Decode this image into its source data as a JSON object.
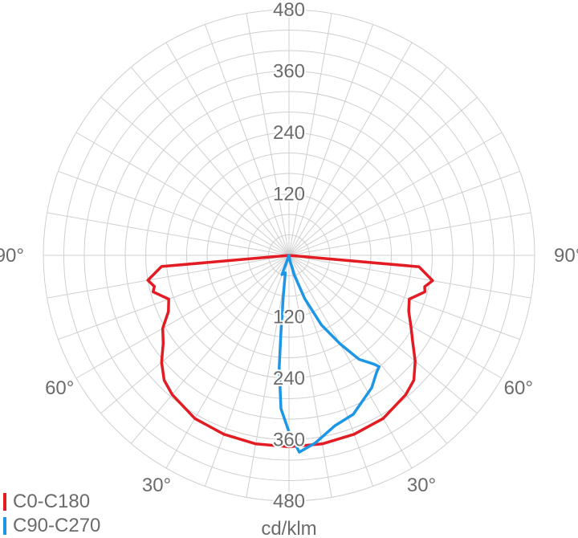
{
  "chart_data": {
    "type": "polar",
    "unit": "cd/klm",
    "r_ticks": [
      120,
      240,
      360,
      480
    ],
    "r_max": 480,
    "angle_labels_left": [
      "90°",
      "60°",
      "30°"
    ],
    "angle_labels_right": [
      "90°",
      "60°",
      "30°"
    ],
    "grid": true,
    "legend_position": "bottom-left",
    "series": [
      {
        "name": "C0-C180",
        "color": "#e31b23",
        "points": [
          [
            -90,
            0
          ],
          [
            -85,
            250
          ],
          [
            -80,
            280
          ],
          [
            -77,
            270
          ],
          [
            -75,
            275
          ],
          [
            -70,
            250
          ],
          [
            -65,
            260
          ],
          [
            -60,
            285
          ],
          [
            -55,
            300
          ],
          [
            -50,
            325
          ],
          [
            -45,
            345
          ],
          [
            -40,
            355
          ],
          [
            -30,
            368
          ],
          [
            -20,
            372
          ],
          [
            -10,
            374
          ],
          [
            0,
            374
          ],
          [
            10,
            374
          ],
          [
            20,
            372
          ],
          [
            30,
            368
          ],
          [
            40,
            355
          ],
          [
            45,
            345
          ],
          [
            50,
            322
          ],
          [
            55,
            295
          ],
          [
            60,
            275
          ],
          [
            65,
            258
          ],
          [
            70,
            250
          ],
          [
            75,
            275
          ],
          [
            77,
            272
          ],
          [
            80,
            285
          ],
          [
            85,
            255
          ],
          [
            90,
            0
          ]
        ]
      },
      {
        "name": "C90-C270",
        "color": "#1e96e6",
        "points": [
          [
            -20,
            40
          ],
          [
            -12,
            35
          ],
          [
            -8,
            80
          ],
          [
            -6,
            150
          ],
          [
            -5,
            220
          ],
          [
            -3,
            300
          ],
          [
            0,
            345
          ],
          [
            3,
            385
          ],
          [
            8,
            370
          ],
          [
            15,
            345
          ],
          [
            22,
            335
          ],
          [
            32,
            305
          ],
          [
            37,
            285
          ],
          [
            39,
            280
          ],
          [
            38,
            270
          ],
          [
            34,
            245
          ],
          [
            30,
            200
          ],
          [
            25,
            150
          ],
          [
            20,
            90
          ],
          [
            15,
            40
          ],
          [
            10,
            10
          ],
          [
            0,
            0
          ]
        ]
      }
    ]
  }
}
